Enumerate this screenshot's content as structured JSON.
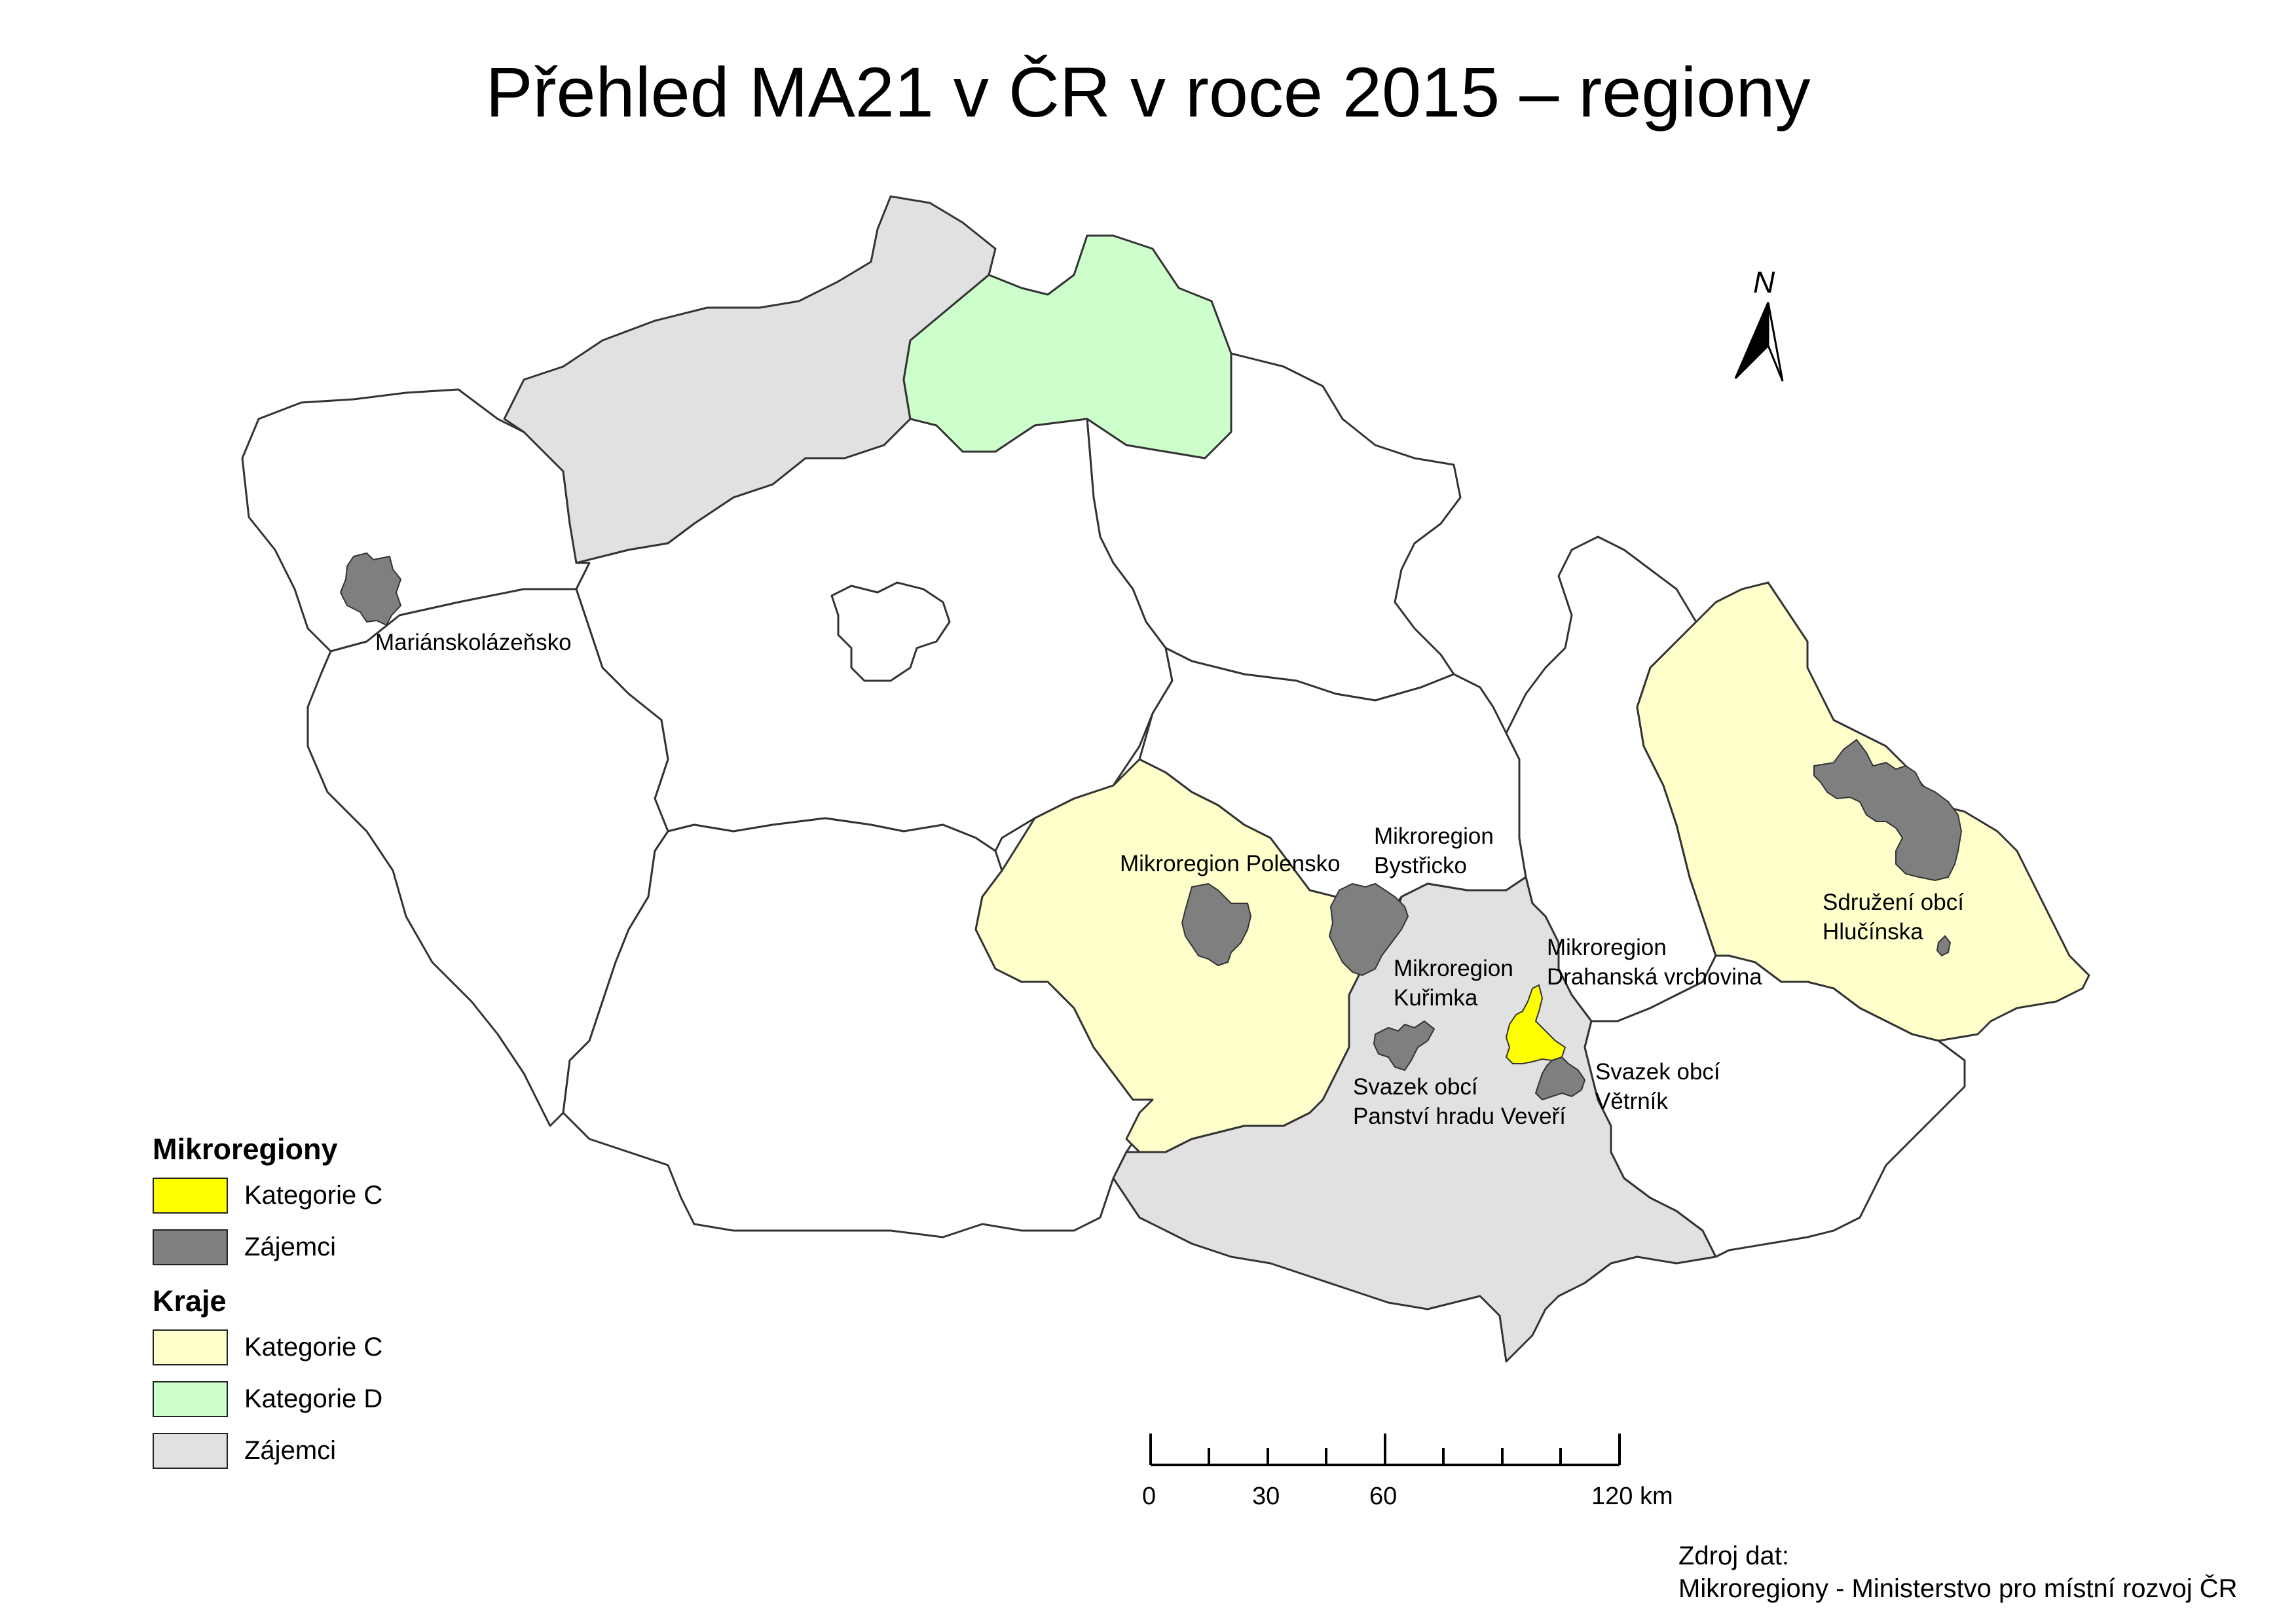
{
  "title": "Přehled MA21 v ČR v roce 2015 – regiony",
  "colors": {
    "mikro_kategorie_c": "#ffff00",
    "mikro_zajemci": "#7f7f7f",
    "kraje_kategorie_c": "#ffffcc",
    "kraje_kategorie_d": "#ccffcc",
    "kraje_zajemci": "#e1e1e1",
    "other_regions": "#ffffff",
    "border": "#333333"
  },
  "north_arrow": {
    "label": "N",
    "icon": "north-arrow-icon"
  },
  "map_labels": {
    "marianskolazensko": "Mariánskolázeňsko",
    "polensko": "Mikroregion Polensko",
    "bystricko_1": "Mikroregion",
    "bystricko_2": "Bystřicko",
    "drahanska_1": "Mikroregion",
    "drahanska_2": "Drahanská vrchovina",
    "kurimka_1": "Mikroregion",
    "kurimka_2": "Kuřimka",
    "veveri_1": "Svazek obcí",
    "veveri_2": "Panství hradu Veveří",
    "vetrnik_1": "Svazek obcí",
    "vetrnik_2": "Větrník",
    "hlucinska_1": "Sdružení obcí",
    "hlucinska_2": "Hlučínska"
  },
  "legend": {
    "mikroregiony": {
      "heading": "Mikroregiony",
      "items": [
        {
          "label": "Kategorie C",
          "color": "#ffff00"
        },
        {
          "label": "Zájemci",
          "color": "#7f7f7f"
        }
      ]
    },
    "kraje": {
      "heading": "Kraje",
      "items": [
        {
          "label": "Kategorie C",
          "color": "#ffffcc"
        },
        {
          "label": "Kategorie D",
          "color": "#ccffcc"
        },
        {
          "label": "Zájemci",
          "color": "#e1e1e1"
        }
      ]
    }
  },
  "scale_bar": {
    "labels": [
      "0",
      "30",
      "60",
      "120 km"
    ]
  },
  "source": {
    "line1": "Zdroj dat:",
    "line2": "Mikroregiony - Ministerstvo pro místní rozvoj ČR"
  }
}
